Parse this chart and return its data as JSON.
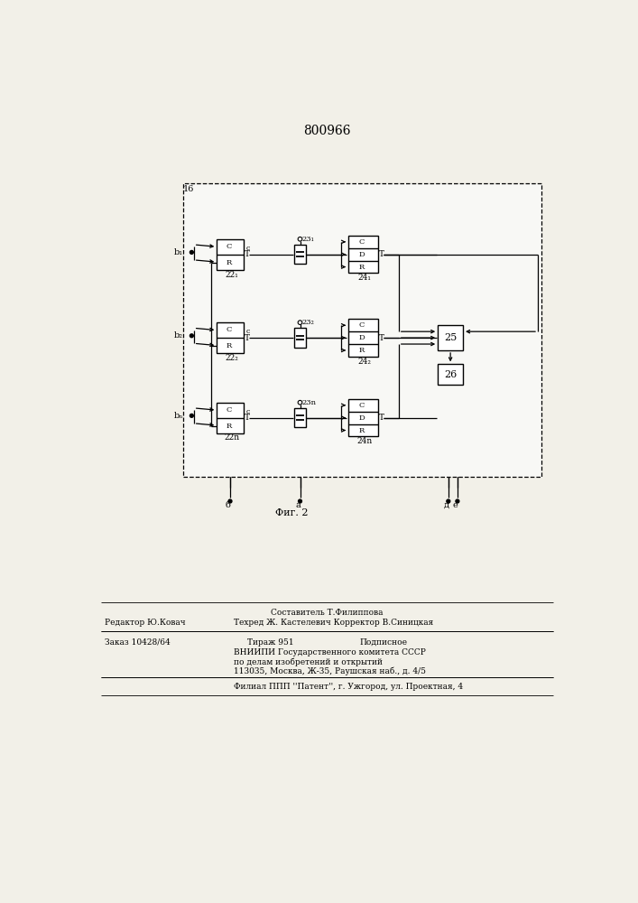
{
  "patent_number": "800966",
  "fig_label": "Фиг. 2",
  "bg_color": "#f2f0e8",
  "rows": [
    {
      "b_label": "b₁",
      "label22": "22₁",
      "label23": "23₁",
      "label24": "24₁"
    },
    {
      "b_label": "b₂",
      "label22": "22₂",
      "label23": "23₂",
      "label24": "24₂"
    },
    {
      "b_label": "bₙ",
      "label22": "22n",
      "label23": "23n",
      "label24": "24n"
    }
  ],
  "block16_label": "16",
  "block25_label": "25",
  "block26_label": "26",
  "terminals": [
    "б",
    "а",
    "д",
    "е"
  ],
  "footer": {
    "line1_center": "Составитель Т.Филиппова",
    "line1_left": "Редактор Ю.Ковач",
    "line1_right": "Техред Ж. Кастелевич Корректор В.Синицкая",
    "line2_left": "Заказ 10428/64",
    "line2_center": "Тираж 951",
    "line2_right": "Подписное",
    "line3": "ВНИИПИ Государственного комитета СССР",
    "line4": "по делам изобретений и открытий",
    "line5": "113035, Москва, Ж-35, Раушская наб., д. 4/5",
    "line6": "Филиал ППП ''Патент'', г. Ужгород, ул. Проектная, 4"
  }
}
